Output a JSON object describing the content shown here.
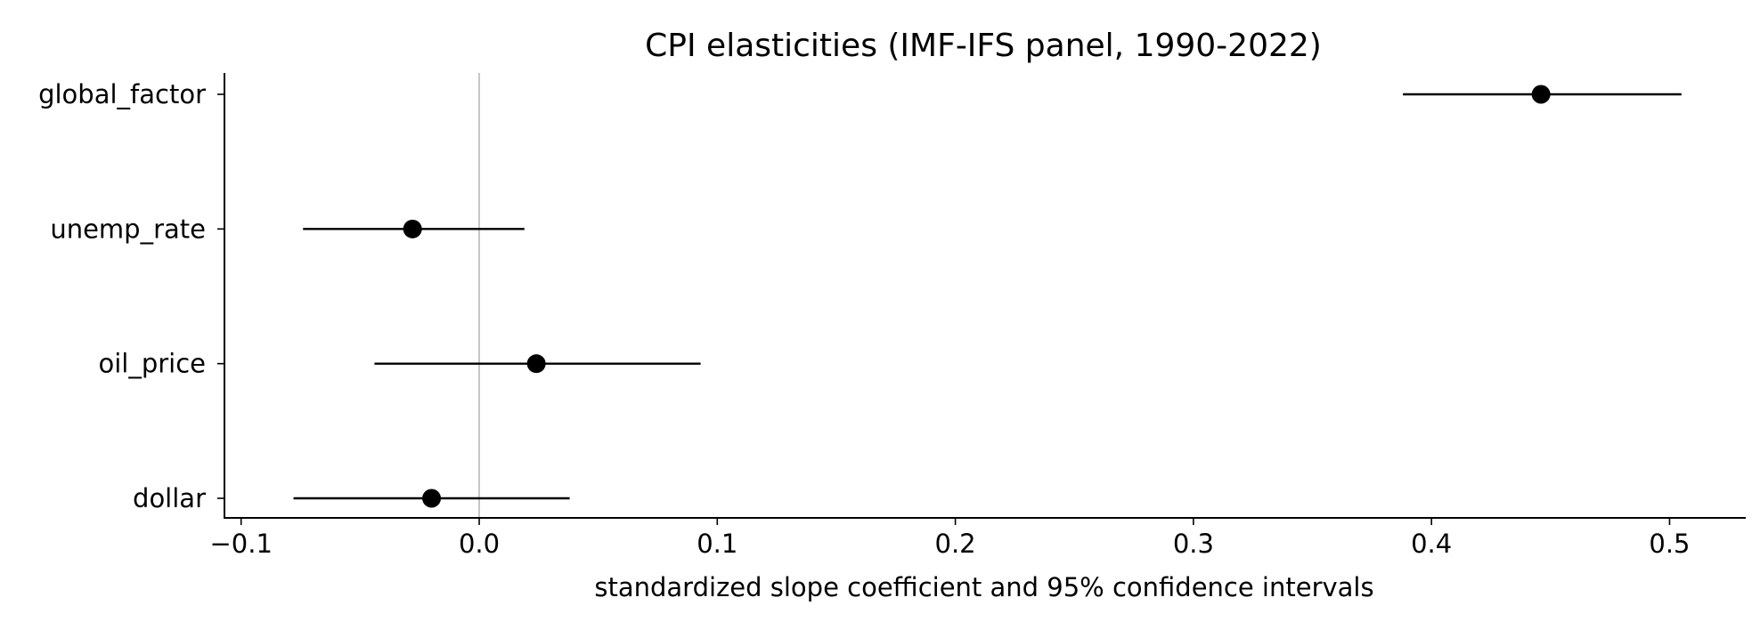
{
  "chart_data": {
    "type": "forest",
    "title": "CPI elasticities (IMF-IFS panel, 1990-2022)",
    "xlabel": "standardized slope coefficient and 95% confidence intervals",
    "ylabel": "",
    "xlim": [
      -0.107,
      0.532
    ],
    "xticks": [
      -0.1,
      0.0,
      0.1,
      0.2,
      0.3,
      0.4,
      0.5
    ],
    "xtick_labels": [
      "−0.1",
      "0.0",
      "0.1",
      "0.2",
      "0.3",
      "0.4",
      "0.5"
    ],
    "reference_line": 0.0,
    "grid": false,
    "categories": [
      "global_factor",
      "unemp_rate",
      "oil_price",
      "dollar"
    ],
    "estimates": [
      0.446,
      -0.028,
      0.024,
      -0.02
    ],
    "ci_lower": [
      0.388,
      -0.074,
      -0.044,
      -0.078
    ],
    "ci_upper": [
      0.505,
      0.019,
      0.093,
      0.038
    ],
    "colors": {
      "marker": "#000000",
      "errorbar": "#000000",
      "reference_line": "#a0a0a0",
      "axis": "#000000"
    }
  }
}
